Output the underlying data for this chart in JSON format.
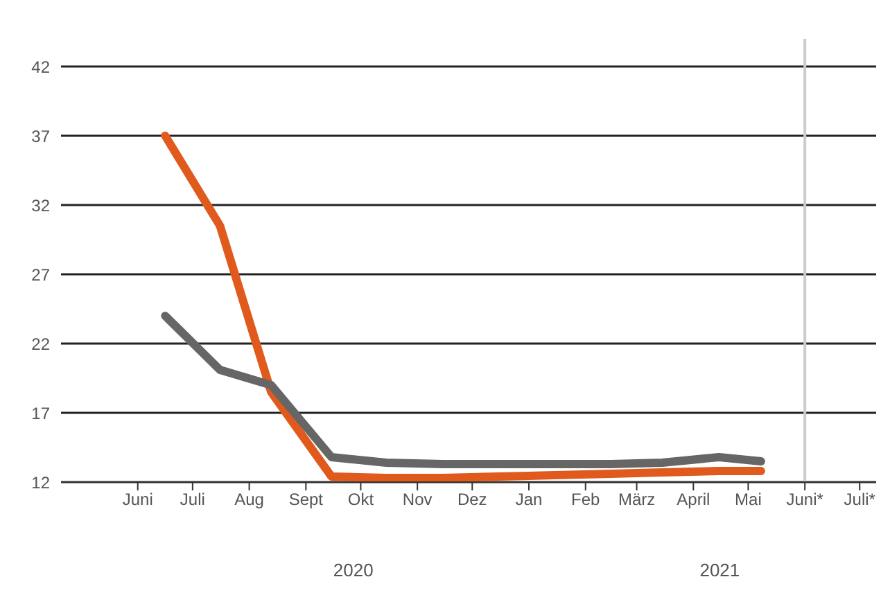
{
  "chart_data": {
    "type": "line",
    "x": [
      "2020-06-16",
      "2020-07-16",
      "2020-08-13",
      "2020-09-15",
      "2020-10-15",
      "2020-11-15",
      "2020-12-15",
      "2021-01-15",
      "2021-02-15",
      "2021-03-15",
      "2021-04-15",
      "2021-05-08"
    ],
    "series": [
      {
        "color": "#e05a1e",
        "values": [
          37,
          30.5,
          18.5,
          12.4,
          12.3,
          12.3,
          12.4,
          12.5,
          12.6,
          12.7,
          12.8,
          12.8
        ]
      },
      {
        "color": "#666666",
        "values": [
          24,
          20.1,
          19,
          13.8,
          13.4,
          13.3,
          13.3,
          13.3,
          13.3,
          13.4,
          13.8,
          13.5
        ]
      }
    ],
    "xlim": [
      "2020-04-20",
      "2021-07-10"
    ],
    "xticks": [
      {
        "value": "2020-06-01",
        "label": "Juni"
      },
      {
        "value": "2020-07-01",
        "label": "Juli"
      },
      {
        "value": "2020-08-01",
        "label": "Aug"
      },
      {
        "value": "2020-09-01",
        "label": "Sept"
      },
      {
        "value": "2020-10-01",
        "label": "Okt"
      },
      {
        "value": "2020-11-01",
        "label": "Nov"
      },
      {
        "value": "2020-12-01",
        "label": "Dez"
      },
      {
        "value": "2021-01-01",
        "label": "Jan"
      },
      {
        "value": "2021-02-01",
        "label": "Feb"
      },
      {
        "value": "2021-03-01",
        "label": "März"
      },
      {
        "value": "2021-04-01",
        "label": "April"
      },
      {
        "value": "2021-05-01",
        "label": "Mai"
      },
      {
        "value": "2021-06-01",
        "label": "Juni*"
      },
      {
        "value": "2021-07-01",
        "label": "Juli*"
      }
    ],
    "ylim": [
      12,
      44
    ],
    "yticks": [
      12,
      17,
      22,
      27,
      32,
      37,
      42
    ],
    "grid": "y",
    "marker": "none",
    "line_style": "solid",
    "ref_lines": [
      {
        "axis": "x",
        "value": "2021-06-01",
        "color": "#cccccc"
      }
    ],
    "annotations": [
      "2020",
      "2021"
    ]
  }
}
